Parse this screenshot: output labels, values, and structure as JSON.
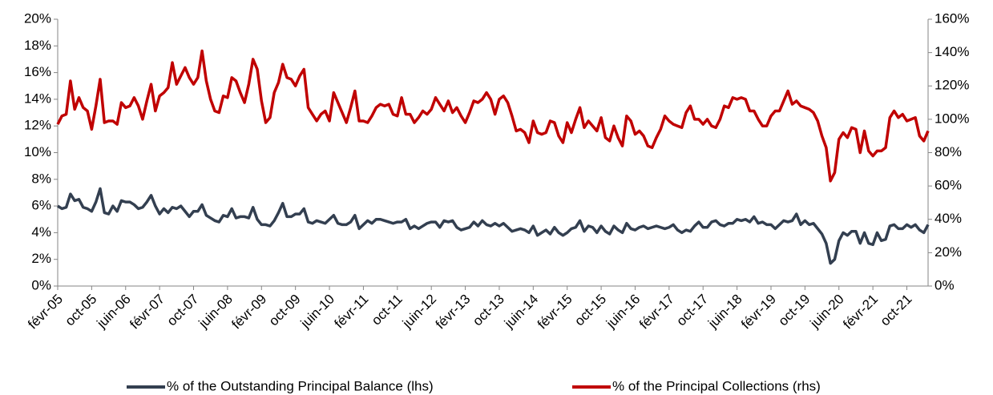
{
  "chart_data": {
    "type": "line",
    "categories": [
      "févr-05",
      null,
      null,
      null,
      null,
      null,
      null,
      null,
      "oct-05",
      null,
      null,
      null,
      null,
      null,
      null,
      null,
      "juin-06",
      null,
      null,
      null,
      null,
      null,
      null,
      null,
      "févr-07",
      null,
      null,
      null,
      null,
      null,
      null,
      null,
      "oct-07",
      null,
      null,
      null,
      null,
      null,
      null,
      null,
      "juin-08",
      null,
      null,
      null,
      null,
      null,
      null,
      null,
      "févr-09",
      null,
      null,
      null,
      null,
      null,
      null,
      null,
      "oct-09",
      null,
      null,
      null,
      null,
      null,
      null,
      null,
      "juin-10",
      null,
      null,
      null,
      null,
      null,
      null,
      null,
      "févr-11",
      null,
      null,
      null,
      null,
      null,
      null,
      null,
      "oct-11",
      null,
      null,
      null,
      null,
      null,
      null,
      null,
      "juin-12",
      null,
      null,
      null,
      null,
      null,
      null,
      null,
      "févr-13",
      null,
      null,
      null,
      null,
      null,
      null,
      null,
      "oct-13",
      null,
      null,
      null,
      null,
      null,
      null,
      null,
      "juin-14",
      null,
      null,
      null,
      null,
      null,
      null,
      null,
      "févr-15",
      null,
      null,
      null,
      null,
      null,
      null,
      null,
      "oct-15",
      null,
      null,
      null,
      null,
      null,
      null,
      null,
      "juin-16",
      null,
      null,
      null,
      null,
      null,
      null,
      null,
      "févr-17",
      null,
      null,
      null,
      null,
      null,
      null,
      null,
      "oct-17",
      null,
      null,
      null,
      null,
      null,
      null,
      null,
      "juin-18",
      null,
      null,
      null,
      null,
      null,
      null,
      null,
      "févr-19",
      null,
      null,
      null,
      null,
      null,
      null,
      null,
      "oct-19",
      null,
      null,
      null,
      null,
      null,
      null,
      null,
      "juin-20",
      null,
      null,
      null,
      null,
      null,
      null,
      null,
      "févr-21",
      null,
      null,
      null,
      null,
      null,
      null,
      null,
      "oct-21",
      null,
      null,
      null,
      null,
      null
    ],
    "series": [
      {
        "name": "% of the Outstanding Principal Balance (lhs)",
        "color": "#333f50",
        "axis": "y",
        "values": [
          6.0,
          5.8,
          5.9,
          6.9,
          6.4,
          6.5,
          5.9,
          5.8,
          5.6,
          6.3,
          7.3,
          5.5,
          5.4,
          6.0,
          5.6,
          6.4,
          6.3,
          6.3,
          6.1,
          5.8,
          5.9,
          6.3,
          6.8,
          6.0,
          5.4,
          5.8,
          5.5,
          5.9,
          5.8,
          6.0,
          5.6,
          5.2,
          5.6,
          5.6,
          6.1,
          5.3,
          5.1,
          4.9,
          4.8,
          5.3,
          5.2,
          5.8,
          5.1,
          5.2,
          5.2,
          5.1,
          5.9,
          5.0,
          4.6,
          4.6,
          4.5,
          4.9,
          5.5,
          6.2,
          5.2,
          5.2,
          5.4,
          5.4,
          5.8,
          4.8,
          4.7,
          4.9,
          4.8,
          4.7,
          5.0,
          5.3,
          4.7,
          4.6,
          4.6,
          4.8,
          5.3,
          4.3,
          4.6,
          4.9,
          4.7,
          5.0,
          5.0,
          4.9,
          4.8,
          4.7,
          4.8,
          4.8,
          5.0,
          4.3,
          4.5,
          4.3,
          4.5,
          4.7,
          4.8,
          4.8,
          4.4,
          4.9,
          4.8,
          4.9,
          4.4,
          4.2,
          4.3,
          4.4,
          4.8,
          4.5,
          4.9,
          4.6,
          4.5,
          4.7,
          4.5,
          4.7,
          4.4,
          4.1,
          4.2,
          4.3,
          4.2,
          4.0,
          4.5,
          3.8,
          4.0,
          4.2,
          3.9,
          4.4,
          4.0,
          3.8,
          4.0,
          4.3,
          4.4,
          4.9,
          4.1,
          4.5,
          4.4,
          4.0,
          4.5,
          4.1,
          3.9,
          4.5,
          4.2,
          4.0,
          4.7,
          4.3,
          4.2,
          4.4,
          4.5,
          4.3,
          4.4,
          4.5,
          4.4,
          4.3,
          4.4,
          4.6,
          4.2,
          4.0,
          4.2,
          4.1,
          4.5,
          4.8,
          4.4,
          4.4,
          4.8,
          4.9,
          4.6,
          4.5,
          4.7,
          4.7,
          5.0,
          4.9,
          5.0,
          4.8,
          5.2,
          4.7,
          4.8,
          4.6,
          4.6,
          4.3,
          4.6,
          4.9,
          4.8,
          4.9,
          5.4,
          4.6,
          4.9,
          4.6,
          4.7,
          4.3,
          3.9,
          3.2,
          1.7,
          2.0,
          3.4,
          4.0,
          3.8,
          4.1,
          4.1,
          3.2,
          4.0,
          3.2,
          3.1,
          4.0,
          3.4,
          3.5,
          4.5,
          4.6,
          4.3,
          4.3,
          4.6,
          4.4,
          4.6,
          4.2,
          4.0,
          4.6
        ]
      },
      {
        "name": "% of the Principal Collections (rhs)",
        "color": "#c00000",
        "axis": "y2",
        "values": [
          97,
          102,
          103,
          123,
          106,
          113,
          107,
          105,
          94,
          108,
          124,
          98,
          99,
          99,
          97,
          110,
          107,
          108,
          113,
          108,
          100,
          111,
          121,
          105,
          114,
          116,
          119,
          134,
          121,
          126,
          131,
          125,
          121,
          125,
          141,
          123,
          112,
          105,
          104,
          114,
          113,
          125,
          123,
          116,
          110,
          121,
          136,
          130,
          111,
          98,
          101,
          116,
          122,
          133,
          125,
          124,
          120,
          126,
          130,
          107,
          103,
          99,
          103,
          105,
          99,
          116,
          110,
          104,
          98,
          107,
          117,
          99,
          99,
          98,
          102,
          107,
          109,
          108,
          109,
          103,
          102,
          113,
          103,
          103,
          98,
          101,
          105,
          103,
          106,
          113,
          109,
          105,
          111,
          104,
          107,
          102,
          98,
          104,
          111,
          110,
          112,
          116,
          112,
          103,
          112,
          114,
          110,
          102,
          93,
          94,
          92,
          86,
          99,
          92,
          91,
          92,
          99,
          98,
          90,
          86,
          98,
          92,
          100,
          107,
          95,
          99,
          96,
          93,
          101,
          89,
          87,
          96,
          89,
          84,
          102,
          99,
          91,
          93,
          90,
          84,
          83,
          89,
          94,
          102,
          99,
          97,
          96,
          95,
          104,
          108,
          100,
          100,
          97,
          100,
          96,
          95,
          100,
          108,
          107,
          113,
          112,
          113,
          112,
          105,
          105,
          100,
          96,
          96,
          102,
          105,
          105,
          111,
          117,
          109,
          111,
          108,
          107,
          106,
          104,
          99,
          90,
          83,
          63,
          68,
          88,
          92,
          89,
          95,
          94,
          80,
          93,
          81,
          78,
          81,
          81,
          83,
          101,
          105,
          101,
          103,
          99,
          100,
          101,
          90,
          87,
          93
        ]
      }
    ],
    "ylim": [
      0,
      20
    ],
    "yticks": [
      {
        "value": 0,
        "label": "0%"
      },
      {
        "value": 2,
        "label": "2%"
      },
      {
        "value": 4,
        "label": "4%"
      },
      {
        "value": 6,
        "label": "6%"
      },
      {
        "value": 8,
        "label": "8%"
      },
      {
        "value": 10,
        "label": "10%"
      },
      {
        "value": 12,
        "label": "12%"
      },
      {
        "value": 14,
        "label": "14%"
      },
      {
        "value": 16,
        "label": "16%"
      },
      {
        "value": 18,
        "label": "18%"
      },
      {
        "value": 20,
        "label": "20%"
      }
    ],
    "y2lim": [
      0,
      160
    ],
    "y2ticks": [
      {
        "value": 0,
        "label": "0%"
      },
      {
        "value": 20,
        "label": "20%"
      },
      {
        "value": 40,
        "label": "40%"
      },
      {
        "value": 60,
        "label": "60%"
      },
      {
        "value": 80,
        "label": "80%"
      },
      {
        "value": 100,
        "label": "100%"
      },
      {
        "value": 120,
        "label": "120%"
      },
      {
        "value": 140,
        "label": "140%"
      },
      {
        "value": 160,
        "label": "160%"
      }
    ],
    "legend": "bottom",
    "grid": false
  }
}
